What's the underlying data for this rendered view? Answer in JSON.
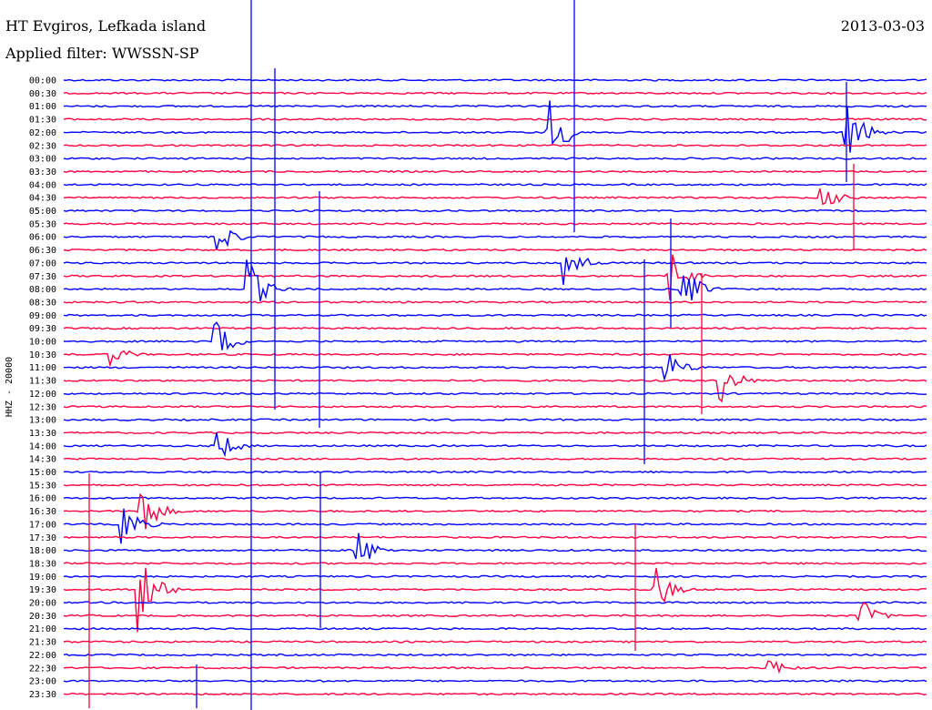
{
  "header": {
    "station": "HT Evgiros, Lefkada island",
    "filter": "Applied filter: WWSSN-SP",
    "date": "2013-03-03"
  },
  "chart_data": {
    "type": "line",
    "title": "HT Evgiros, Lefkada island",
    "subtitle": "Applied filter: WWSSN-SP",
    "date": "2013-03-03",
    "ylabel": "HHZ - 20000",
    "rows": [
      "00:00",
      "00:30",
      "01:00",
      "01:30",
      "02:00",
      "02:30",
      "03:00",
      "03:30",
      "04:00",
      "04:30",
      "05:00",
      "05:30",
      "06:00",
      "06:30",
      "07:00",
      "07:30",
      "08:00",
      "08:30",
      "09:00",
      "09:30",
      "10:00",
      "10:30",
      "11:00",
      "11:30",
      "12:00",
      "12:30",
      "13:00",
      "13:30",
      "14:00",
      "14:30",
      "15:00",
      "15:30",
      "16:00",
      "16:30",
      "17:00",
      "17:30",
      "18:00",
      "18:30",
      "19:00",
      "19:30",
      "20:00",
      "20:30",
      "21:00",
      "21:30",
      "22:00",
      "22:30",
      "23:00",
      "23:30"
    ],
    "row_colors": [
      "#0000ff",
      "#ff0040"
    ],
    "x_minutes_per_row": 30,
    "events": [
      {
        "row": 4,
        "minute": 16.8,
        "amp": 50
      },
      {
        "row": 4,
        "minute": 27.2,
        "amp": 40
      },
      {
        "row": 9,
        "minute": 26.3,
        "amp": 20
      },
      {
        "row": 12,
        "minute": 5.3,
        "amp": 25
      },
      {
        "row": 14,
        "minute": 17.4,
        "amp": 30
      },
      {
        "row": 15,
        "minute": 21.0,
        "amp": 35
      },
      {
        "row": 16,
        "minute": 6.4,
        "amp": 35
      },
      {
        "row": 16,
        "minute": 21.5,
        "amp": 30
      },
      {
        "row": 20,
        "minute": 5.2,
        "amp": 30
      },
      {
        "row": 21,
        "minute": 1.6,
        "amp": 15
      },
      {
        "row": 22,
        "minute": 20.9,
        "amp": 25
      },
      {
        "row": 23,
        "minute": 22.8,
        "amp": 30
      },
      {
        "row": 28,
        "minute": 5.3,
        "amp": 22
      },
      {
        "row": 33,
        "minute": 2.6,
        "amp": 40
      },
      {
        "row": 34,
        "minute": 2.0,
        "amp": 30
      },
      {
        "row": 36,
        "minute": 10.2,
        "amp": 25
      },
      {
        "row": 39,
        "minute": 2.6,
        "amp": 50
      },
      {
        "row": 39,
        "minute": 20.5,
        "amp": 30
      },
      {
        "row": 41,
        "minute": 27.6,
        "amp": 25
      },
      {
        "row": 45,
        "minute": 24.5,
        "amp": 14
      }
    ]
  }
}
